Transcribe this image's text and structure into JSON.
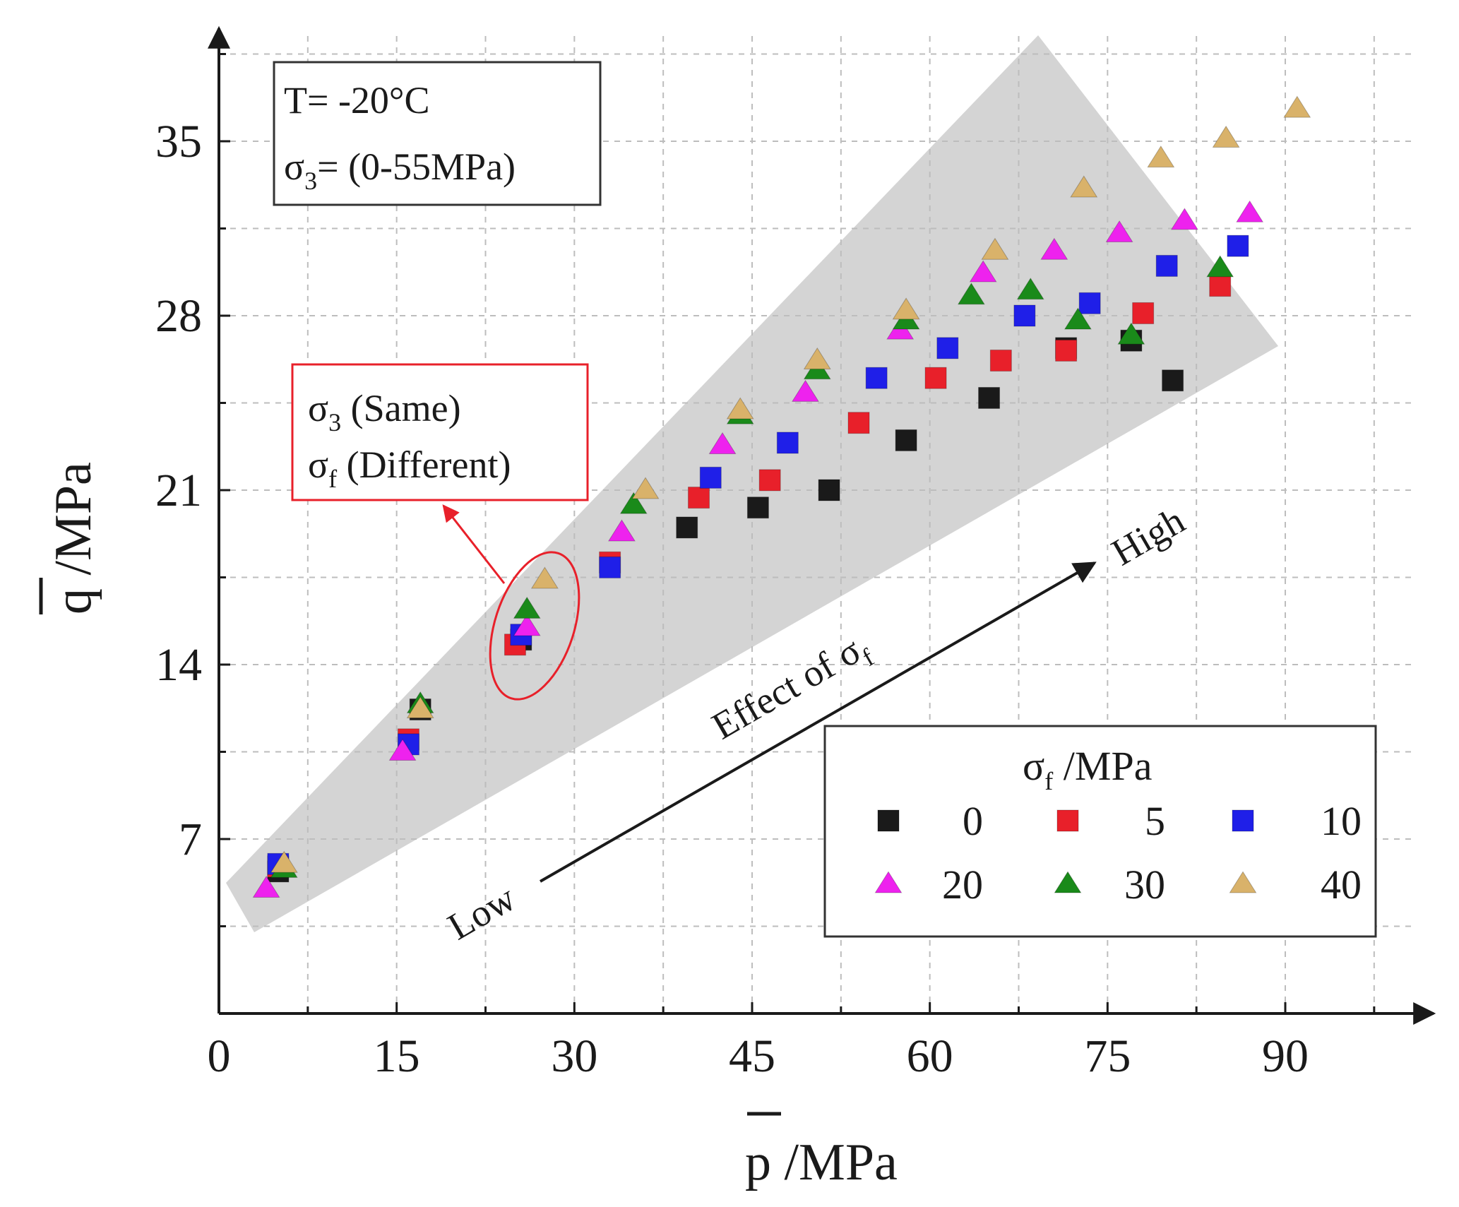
{
  "chart_data": {
    "type": "scatter",
    "xlabel": "p /MPa",
    "ylabel": "q /MPa",
    "xlim": [
      0,
      100
    ],
    "ylim": [
      0,
      39
    ],
    "x_ticks": [
      0,
      15,
      30,
      45,
      60,
      75,
      90
    ],
    "y_ticks": [
      7,
      14,
      21,
      28,
      35
    ],
    "grid": true,
    "conditions": {
      "line1": "T= -20°C",
      "line2_symbol": "σ",
      "line2_sub": "3",
      "line2_rest": "= (0-55MPa)"
    },
    "callout": {
      "line1_symbol": "σ",
      "line1_sub": "3",
      "line1_rest": " (Same)",
      "line2_symbol": "σ",
      "line2_sub": "f",
      "line2_rest": " (Different)"
    },
    "arrow_annotation": {
      "low_label": "Low",
      "high_label": "High",
      "effect_text": "Effect of σ",
      "effect_sub": "f"
    },
    "legend": {
      "title_symbol": "σ",
      "title_sub": "f",
      "title_rest": " /MPa",
      "position": "bottom-right"
    },
    "colors": {
      "0": "#1a1a1a",
      "5": "#e8202a",
      "10": "#1f1fe8",
      "20": "#ee22ee",
      "30": "#1a8a1a",
      "40": "#d9b26a",
      "band": "#d4d4d4",
      "callout": "#e8202a"
    },
    "series": [
      {
        "name": "0",
        "marker": "square",
        "points": [
          [
            5,
            5.7
          ],
          [
            17,
            12.2
          ],
          [
            25.5,
            15
          ],
          [
            39.5,
            19.5
          ],
          [
            45.5,
            20.3
          ],
          [
            51.5,
            21
          ],
          [
            58,
            23
          ],
          [
            65,
            24.7
          ],
          [
            71.5,
            26.7
          ],
          [
            77,
            27
          ],
          [
            80.5,
            25.4
          ]
        ]
      },
      {
        "name": "5",
        "marker": "square",
        "points": [
          [
            5,
            5.9
          ],
          [
            16,
            11
          ],
          [
            25,
            14.8
          ],
          [
            33,
            18.1
          ],
          [
            40.5,
            20.7
          ],
          [
            46.5,
            21.4
          ],
          [
            54,
            23.7
          ],
          [
            60.5,
            25.5
          ],
          [
            66,
            26.2
          ],
          [
            71.5,
            26.6
          ],
          [
            78,
            28.1
          ],
          [
            84.5,
            29.2
          ]
        ]
      },
      {
        "name": "10",
        "marker": "square",
        "points": [
          [
            5,
            6
          ],
          [
            16,
            10.8
          ],
          [
            25.5,
            15.2
          ],
          [
            33,
            17.9
          ],
          [
            41.5,
            21.5
          ],
          [
            48,
            22.9
          ],
          [
            55.5,
            25.5
          ],
          [
            61.5,
            26.7
          ],
          [
            68,
            28
          ],
          [
            73.5,
            28.5
          ],
          [
            80,
            30
          ],
          [
            86,
            30.8
          ]
        ]
      },
      {
        "name": "20",
        "marker": "triangle",
        "points": [
          [
            4,
            5
          ],
          [
            15.5,
            10.5
          ],
          [
            26,
            15.5
          ],
          [
            34,
            19.3
          ],
          [
            42.5,
            22.8
          ],
          [
            49.5,
            24.9
          ],
          [
            57.5,
            27.4
          ],
          [
            64.5,
            29.7
          ],
          [
            70.5,
            30.6
          ],
          [
            76,
            31.3
          ],
          [
            81.5,
            31.8
          ],
          [
            87,
            32.1
          ]
        ]
      },
      {
        "name": "30",
        "marker": "triangle",
        "points": [
          [
            5.5,
            5.8
          ],
          [
            17,
            12.4
          ],
          [
            26,
            16.2
          ],
          [
            35,
            20.4
          ],
          [
            44,
            24
          ],
          [
            50.5,
            25.8
          ],
          [
            58,
            27.8
          ],
          [
            63.5,
            28.8
          ],
          [
            68.5,
            29
          ],
          [
            72.5,
            27.8
          ],
          [
            77,
            27.2
          ],
          [
            84.5,
            29.9
          ]
        ]
      },
      {
        "name": "40",
        "marker": "triangle",
        "points": [
          [
            5.5,
            6
          ],
          [
            17,
            12.2
          ],
          [
            27.5,
            17.4
          ],
          [
            36,
            21
          ],
          [
            44,
            24.2
          ],
          [
            50.5,
            26.2
          ],
          [
            58,
            28.2
          ],
          [
            65.5,
            30.6
          ],
          [
            73,
            33.1
          ],
          [
            79.5,
            34.3
          ],
          [
            85,
            35.1
          ],
          [
            91,
            36.3
          ]
        ]
      }
    ]
  }
}
